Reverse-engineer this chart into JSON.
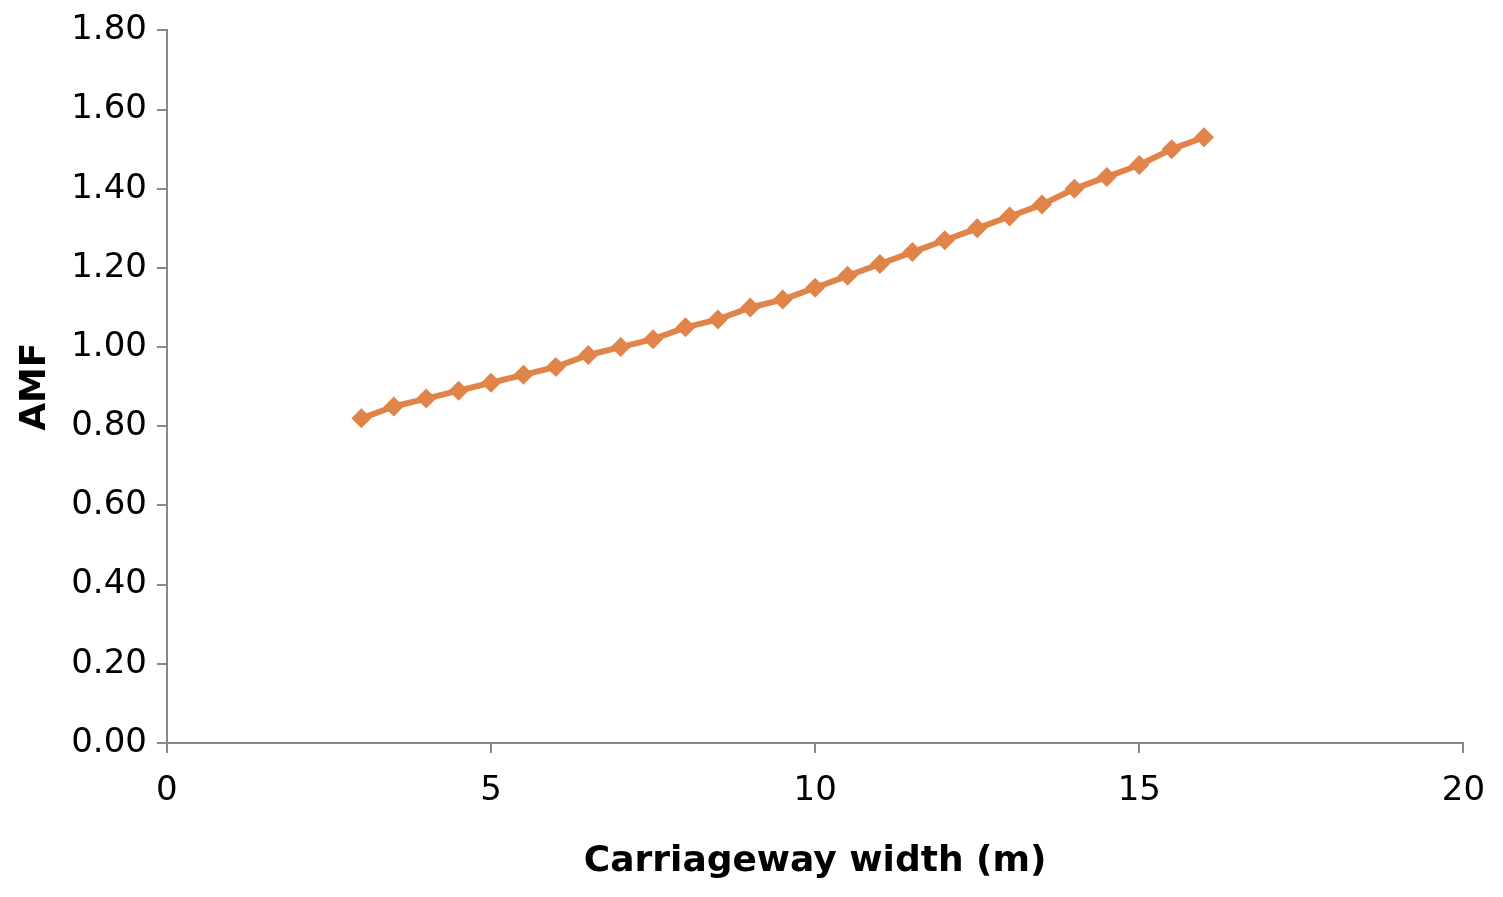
{
  "chart_data": {
    "type": "line",
    "xlabel": "Carriageway width (m)",
    "ylabel": "AMF",
    "x": [
      3,
      3.5,
      4,
      4.5,
      5,
      5.5,
      6,
      6.5,
      7,
      7.5,
      8,
      8.5,
      9,
      9.5,
      10,
      10.5,
      11,
      11.5,
      12,
      12.5,
      13,
      13.5,
      14,
      14.5,
      15,
      15.5,
      16
    ],
    "series": [
      {
        "color": "#e0844a",
        "values": [
          0.82,
          0.85,
          0.87,
          0.89,
          0.91,
          0.93,
          0.95,
          0.98,
          1.0,
          1.02,
          1.05,
          1.07,
          1.1,
          1.12,
          1.15,
          1.18,
          1.21,
          1.24,
          1.27,
          1.3,
          1.33,
          1.36,
          1.4,
          1.43,
          1.46,
          1.5,
          1.53
        ]
      }
    ],
    "xlim": [
      0,
      20
    ],
    "xticks": [
      0,
      5,
      10,
      15,
      20
    ],
    "ylim": [
      0,
      1.8
    ],
    "yticks": [
      {
        "value": 0,
        "label": "0.00"
      },
      {
        "value": 0.2,
        "label": "0.20"
      },
      {
        "value": 0.4,
        "label": "0.40"
      },
      {
        "value": 0.6,
        "label": "0.60"
      },
      {
        "value": 0.8,
        "label": "0.80"
      },
      {
        "value": 1,
        "label": "1.00"
      },
      {
        "value": 1.2,
        "label": "1.20"
      },
      {
        "value": 1.4,
        "label": "1.40"
      },
      {
        "value": 1.6,
        "label": "1.60"
      },
      {
        "value": 1.8,
        "label": "1.80"
      }
    ],
    "grid": false,
    "legend": false,
    "marker": "diamond",
    "line_style": "solid"
  }
}
